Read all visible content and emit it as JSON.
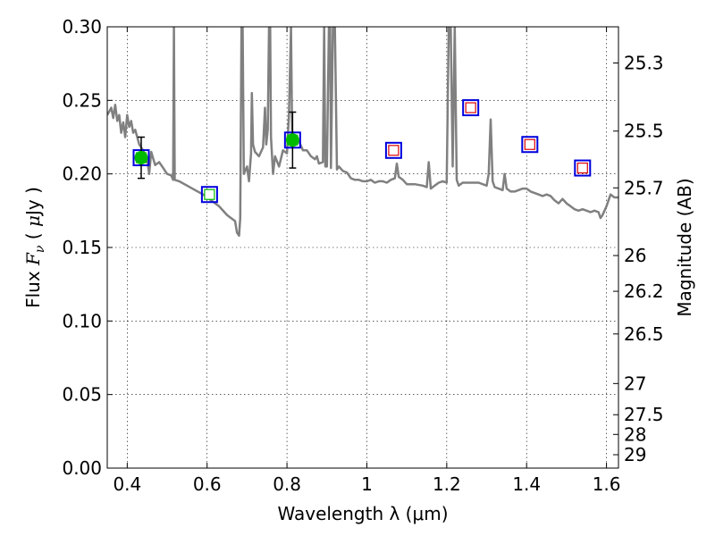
{
  "chart_data": {
    "type": "scatter",
    "xlabel": "Wavelength  λ (μm)",
    "ylabel_left": "Flux  F_ν  ( μJy )",
    "ylabel_right": "Magnitude (AB)",
    "xlim": [
      0.35,
      1.63
    ],
    "ylim": [
      0.0,
      0.3
    ],
    "grid": true,
    "x_ticks": [
      0.4,
      0.6,
      0.8,
      1.0,
      1.2,
      1.4,
      1.6
    ],
    "x_tick_labels": [
      "0.4",
      "0.6",
      "0.8",
      "1",
      "1.2",
      "1.4",
      "1.6"
    ],
    "y_ticks": [
      0.0,
      0.05,
      0.1,
      0.15,
      0.2,
      0.25,
      0.3
    ],
    "y_tick_labels": [
      "0.00",
      "0.05",
      "0.10",
      "0.15",
      "0.20",
      "0.25",
      "0.30"
    ],
    "right_ticks": [
      {
        "flux": 0.2754,
        "label": "25.3"
      },
      {
        "flux": 0.2291,
        "label": "25.5"
      },
      {
        "flux": 0.1905,
        "label": "25.7"
      },
      {
        "flux": 0.1445,
        "label": "26"
      },
      {
        "flux": 0.1202,
        "label": "26.2"
      },
      {
        "flux": 0.0912,
        "label": "26.5"
      },
      {
        "flux": 0.0575,
        "label": "27"
      },
      {
        "flux": 0.0363,
        "label": "27.5"
      },
      {
        "flux": 0.0229,
        "label": "28"
      },
      {
        "flux": 0.0091,
        "label": "29"
      }
    ],
    "model_spectrum": {
      "color": "#808080",
      "points": [
        [
          0.35,
          0.24
        ],
        [
          0.36,
          0.245
        ],
        [
          0.365,
          0.238
        ],
        [
          0.37,
          0.247
        ],
        [
          0.375,
          0.236
        ],
        [
          0.38,
          0.24
        ],
        [
          0.385,
          0.228
        ],
        [
          0.39,
          0.235
        ],
        [
          0.395,
          0.225
        ],
        [
          0.4,
          0.24
        ],
        [
          0.405,
          0.232
        ],
        [
          0.41,
          0.236
        ],
        [
          0.415,
          0.228
        ],
        [
          0.42,
          0.23
        ],
        [
          0.43,
          0.22
        ],
        [
          0.44,
          0.216
        ],
        [
          0.45,
          0.21
        ],
        [
          0.455,
          0.2
        ],
        [
          0.46,
          0.215
        ],
        [
          0.47,
          0.206
        ],
        [
          0.48,
          0.208
        ],
        [
          0.49,
          0.204
        ],
        [
          0.5,
          0.2
        ],
        [
          0.51,
          0.199
        ],
        [
          0.515,
          0.196
        ],
        [
          0.517,
          0.3
        ],
        [
          0.519,
          0.196
        ],
        [
          0.53,
          0.195
        ],
        [
          0.55,
          0.192
        ],
        [
          0.57,
          0.189
        ],
        [
          0.59,
          0.186
        ],
        [
          0.61,
          0.182
        ],
        [
          0.63,
          0.178
        ],
        [
          0.65,
          0.172
        ],
        [
          0.66,
          0.17
        ],
        [
          0.67,
          0.168
        ],
        [
          0.675,
          0.16
        ],
        [
          0.68,
          0.158
        ],
        [
          0.683,
          0.17
        ],
        [
          0.686,
          0.3
        ],
        [
          0.689,
          0.3
        ],
        [
          0.692,
          0.2
        ],
        [
          0.7,
          0.205
        ],
        [
          0.705,
          0.195
        ],
        [
          0.71,
          0.214
        ],
        [
          0.712,
          0.255
        ],
        [
          0.715,
          0.22
        ],
        [
          0.72,
          0.215
        ],
        [
          0.73,
          0.212
        ],
        [
          0.74,
          0.218
        ],
        [
          0.745,
          0.245
        ],
        [
          0.748,
          0.22
        ],
        [
          0.752,
          0.23
        ],
        [
          0.755,
          0.3
        ],
        [
          0.758,
          0.3
        ],
        [
          0.76,
          0.225
        ],
        [
          0.765,
          0.2
        ],
        [
          0.77,
          0.212
        ],
        [
          0.78,
          0.205
        ],
        [
          0.79,
          0.216
        ],
        [
          0.8,
          0.214
        ],
        [
          0.805,
          0.24
        ],
        [
          0.81,
          0.3
        ],
        [
          0.813,
          0.225
        ],
        [
          0.82,
          0.22
        ],
        [
          0.83,
          0.222
        ],
        [
          0.84,
          0.216
        ],
        [
          0.85,
          0.216
        ],
        [
          0.86,
          0.212
        ],
        [
          0.87,
          0.21
        ],
        [
          0.875,
          0.212
        ],
        [
          0.88,
          0.207
        ],
        [
          0.89,
          0.208
        ],
        [
          0.893,
          0.3
        ],
        [
          0.896,
          0.205
        ],
        [
          0.9,
          0.205
        ],
        [
          0.905,
          0.3
        ],
        [
          0.908,
          0.3
        ],
        [
          0.91,
          0.204
        ],
        [
          0.915,
          0.3
        ],
        [
          0.92,
          0.3
        ],
        [
          0.925,
          0.203
        ],
        [
          0.93,
          0.205
        ],
        [
          0.94,
          0.202
        ],
        [
          0.95,
          0.201
        ],
        [
          0.96,
          0.197
        ],
        [
          0.97,
          0.196
        ],
        [
          0.98,
          0.196
        ],
        [
          0.99,
          0.195
        ],
        [
          1.0,
          0.195
        ],
        [
          1.01,
          0.196
        ],
        [
          1.02,
          0.194
        ],
        [
          1.03,
          0.195
        ],
        [
          1.04,
          0.195
        ],
        [
          1.05,
          0.194
        ],
        [
          1.06,
          0.196
        ],
        [
          1.07,
          0.197
        ],
        [
          1.075,
          0.207
        ],
        [
          1.08,
          0.198
        ],
        [
          1.09,
          0.196
        ],
        [
          1.1,
          0.193
        ],
        [
          1.12,
          0.193
        ],
        [
          1.14,
          0.192
        ],
        [
          1.15,
          0.191
        ],
        [
          1.155,
          0.208
        ],
        [
          1.16,
          0.19
        ],
        [
          1.17,
          0.192
        ],
        [
          1.18,
          0.194
        ],
        [
          1.19,
          0.195
        ],
        [
          1.2,
          0.194
        ],
        [
          1.205,
          0.3
        ],
        [
          1.21,
          0.3
        ],
        [
          1.215,
          0.205
        ],
        [
          1.22,
          0.3
        ],
        [
          1.225,
          0.196
        ],
        [
          1.23,
          0.192
        ],
        [
          1.24,
          0.194
        ],
        [
          1.26,
          0.194
        ],
        [
          1.28,
          0.194
        ],
        [
          1.3,
          0.192
        ],
        [
          1.305,
          0.2
        ],
        [
          1.31,
          0.237
        ],
        [
          1.315,
          0.195
        ],
        [
          1.32,
          0.191
        ],
        [
          1.33,
          0.19
        ],
        [
          1.34,
          0.189
        ],
        [
          1.345,
          0.2
        ],
        [
          1.35,
          0.19
        ],
        [
          1.36,
          0.188
        ],
        [
          1.37,
          0.188
        ],
        [
          1.38,
          0.189
        ],
        [
          1.39,
          0.19
        ],
        [
          1.4,
          0.19
        ],
        [
          1.41,
          0.188
        ],
        [
          1.42,
          0.187
        ],
        [
          1.43,
          0.186
        ],
        [
          1.44,
          0.185
        ],
        [
          1.45,
          0.186
        ],
        [
          1.46,
          0.185
        ],
        [
          1.47,
          0.182
        ],
        [
          1.48,
          0.18
        ],
        [
          1.49,
          0.183
        ],
        [
          1.5,
          0.18
        ],
        [
          1.51,
          0.178
        ],
        [
          1.52,
          0.176
        ],
        [
          1.53,
          0.175
        ],
        [
          1.54,
          0.176
        ],
        [
          1.55,
          0.175
        ],
        [
          1.56,
          0.174
        ],
        [
          1.57,
          0.175
        ],
        [
          1.58,
          0.174
        ],
        [
          1.585,
          0.17
        ],
        [
          1.59,
          0.172
        ],
        [
          1.6,
          0.178
        ],
        [
          1.61,
          0.186
        ],
        [
          1.62,
          0.184
        ],
        [
          1.63,
          0.184
        ]
      ]
    },
    "observed_points": [
      {
        "x": 0.435,
        "y": 0.211,
        "err": 0.014,
        "color": "#00bb00"
      },
      {
        "x": 0.814,
        "y": 0.223,
        "err": 0.019,
        "color": "#00bb00"
      }
    ],
    "model_photometry": [
      {
        "x": 0.435,
        "y": 0.211,
        "inner": "#00bb00"
      },
      {
        "x": 0.606,
        "y": 0.186,
        "inner": "#00bb00"
      },
      {
        "x": 0.814,
        "y": 0.223,
        "inner": "#00bb00"
      },
      {
        "x": 1.067,
        "y": 0.216,
        "inner": "#dd0000"
      },
      {
        "x": 1.26,
        "y": 0.245,
        "inner": "#dd0000"
      },
      {
        "x": 1.408,
        "y": 0.22,
        "inner": "#dd0000"
      },
      {
        "x": 1.54,
        "y": 0.204,
        "inner": "#dd0000"
      }
    ],
    "colors": {
      "outer_box": "#0000dd",
      "errorbar": "#000000",
      "spectrum": "#808080"
    }
  }
}
